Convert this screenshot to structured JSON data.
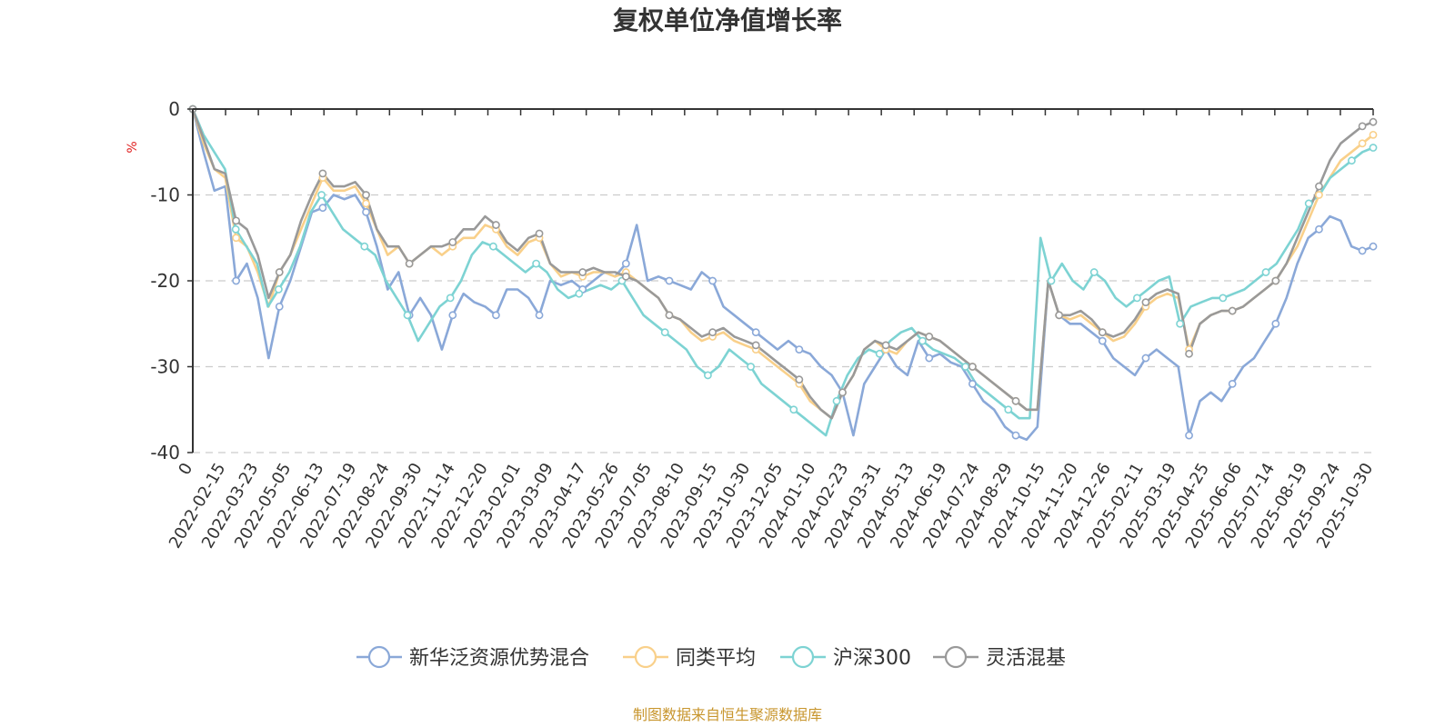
{
  "chart_data": {
    "type": "line",
    "title": "复权单位净值增长率",
    "ylabel": "%",
    "xlabel": "",
    "ylim": [
      -40,
      0
    ],
    "y_ticks": [
      0,
      -10,
      -20,
      -30,
      -40
    ],
    "grid": true,
    "legend_position": "bottom",
    "source": "制图数据来自恒生聚源数据库",
    "x_tick_labels": [
      "0",
      "2022-02-15",
      "2022-03-23",
      "2022-05-05",
      "2022-06-13",
      "2022-07-19",
      "2022-08-24",
      "2022-09-30",
      "2022-11-14",
      "2022-12-20",
      "2023-02-01",
      "2023-03-09",
      "2023-04-17",
      "2023-05-26",
      "2023-07-05",
      "2023-08-10",
      "2023-09-15",
      "2023-10-30",
      "2023-12-05",
      "2024-01-10",
      "2024-02-23",
      "2024-03-31",
      "2024-05-13",
      "2024-06-19",
      "2024-07-24",
      "2024-08-29",
      "2024-10-15",
      "2024-11-20",
      "2024-12-26",
      "2025-02-11",
      "2025-03-19",
      "2025-04-25",
      "2025-06-06",
      "2025-07-14",
      "2025-08-19",
      "2025-09-24",
      "2025-10-30"
    ],
    "series": [
      {
        "name": "新华泛资源优势混合",
        "color": "#8aa8d8",
        "values": [
          0,
          -5,
          -9.5,
          -9,
          -20,
          -18,
          -22,
          -29,
          -23,
          -20,
          -16,
          -12,
          -11.5,
          -10,
          -10.5,
          -10,
          -12,
          -16,
          -21,
          -19,
          -24,
          -22,
          -24,
          -28,
          -24,
          -21.5,
          -22.5,
          -23,
          -24,
          -21,
          -21,
          -22,
          -24,
          -20,
          -20.5,
          -20,
          -21,
          -20,
          -19,
          -19.5,
          -18,
          -13.5,
          -20,
          -19.5,
          -20,
          -20.5,
          -21,
          -19,
          -20,
          -23,
          -24,
          -25,
          -26,
          -27,
          -28,
          -27,
          -28,
          -28.5,
          -30,
          -31,
          -33,
          -38,
          -32,
          -30,
          -28,
          -30,
          -31,
          -27,
          -29,
          -28.5,
          -29.5,
          -30,
          -32,
          -34,
          -35,
          -37,
          -38,
          -38.5,
          -37,
          -20,
          -24,
          -25,
          -25,
          -26,
          -27,
          -29,
          -30,
          -31,
          -29,
          -28,
          -29,
          -30,
          -38,
          -34,
          -33,
          -34,
          -32,
          -30,
          -29,
          -27,
          -25,
          -22,
          -18,
          -15,
          -14,
          -12.5,
          -13,
          -16,
          -16.5,
          -16
        ]
      },
      {
        "name": "同类平均",
        "color": "#f9d08a",
        "values": [
          0,
          -4,
          -7,
          -8,
          -15,
          -16,
          -19,
          -23,
          -19,
          -17,
          -14,
          -11,
          -8,
          -9.5,
          -9.5,
          -9,
          -11,
          -14,
          -17,
          -16,
          -18,
          -17,
          -16,
          -17,
          -16,
          -15,
          -15,
          -13.5,
          -14,
          -16,
          -17,
          -15.5,
          -15,
          -18,
          -19.5,
          -19,
          -19.5,
          -19,
          -19,
          -19.5,
          -19,
          -20,
          -21,
          -22,
          -24,
          -24.5,
          -26,
          -27,
          -26.5,
          -26,
          -27,
          -27.5,
          -28,
          -29,
          -30,
          -31,
          -32,
          -34,
          -35,
          -36,
          -33,
          -31,
          -28,
          -27,
          -28,
          -28.5,
          -27,
          -26,
          -26.5,
          -27,
          -28,
          -29,
          -30,
          -31,
          -32,
          -33,
          -34,
          -35,
          -35,
          -20,
          -24,
          -24.5,
          -24,
          -25,
          -26,
          -27,
          -26.5,
          -25,
          -23,
          -22,
          -21.5,
          -22,
          -28,
          -25,
          -24,
          -23.5,
          -23.5,
          -23,
          -22,
          -21,
          -20,
          -18,
          -16,
          -13,
          -10,
          -8,
          -6,
          -5,
          -4,
          -3
        ]
      },
      {
        "name": "沪深300",
        "color": "#7dd3d3",
        "values": [
          0,
          -3,
          -5,
          -7,
          -14,
          -16,
          -18,
          -23,
          -21,
          -19,
          -16,
          -12,
          -10,
          -12,
          -14,
          -15,
          -16,
          -17,
          -20,
          -22,
          -24,
          -27,
          -25,
          -23,
          -22,
          -20,
          -17,
          -15.5,
          -16,
          -17,
          -18,
          -19,
          -18,
          -19,
          -21,
          -22,
          -21.5,
          -21,
          -20.5,
          -21,
          -20,
          -22,
          -24,
          -25,
          -26,
          -27,
          -28,
          -30,
          -31,
          -30,
          -28,
          -29,
          -30,
          -32,
          -33,
          -34,
          -35,
          -36,
          -37,
          -38,
          -34,
          -31,
          -29,
          -28,
          -28.5,
          -27,
          -26,
          -25.5,
          -27,
          -28,
          -28.5,
          -29,
          -30,
          -32,
          -33,
          -34,
          -35,
          -36,
          -36,
          -15,
          -20,
          -18,
          -20,
          -21,
          -19,
          -20,
          -22,
          -23,
          -22,
          -21,
          -20,
          -19.5,
          -25,
          -23,
          -22.5,
          -22,
          -22,
          -21.5,
          -21,
          -20,
          -19,
          -18,
          -16,
          -14,
          -11,
          -10,
          -8,
          -7,
          -6,
          -5,
          -4.5
        ]
      },
      {
        "name": "灵活混基",
        "color": "#999999",
        "values": [
          0,
          -3.5,
          -7,
          -7.5,
          -13,
          -14,
          -17,
          -22,
          -19,
          -17,
          -13,
          -10,
          -7.5,
          -9,
          -9,
          -8.5,
          -10,
          -14,
          -16,
          -16,
          -18,
          -17,
          -16,
          -16,
          -15.5,
          -14,
          -14,
          -12.5,
          -13.5,
          -15.5,
          -16.5,
          -15,
          -14.5,
          -18,
          -19,
          -19,
          -19,
          -18.5,
          -19,
          -19,
          -19.5,
          -20,
          -21,
          -22,
          -24,
          -24.5,
          -25.5,
          -26.5,
          -26,
          -25.5,
          -26.5,
          -27,
          -27.5,
          -28.5,
          -29.5,
          -30.5,
          -31.5,
          -33.5,
          -35,
          -36,
          -33,
          -31,
          -28,
          -27,
          -27.5,
          -28,
          -27,
          -26,
          -26.5,
          -27,
          -28,
          -29,
          -30,
          -31,
          -32,
          -33,
          -34,
          -35,
          -35,
          -20,
          -24,
          -24,
          -23.5,
          -24.5,
          -26,
          -26.5,
          -26,
          -24.5,
          -22.5,
          -21.5,
          -21,
          -21.5,
          -28.5,
          -25,
          -24,
          -23.5,
          -23.5,
          -23,
          -22,
          -21,
          -20,
          -18,
          -15,
          -12,
          -9,
          -6,
          -4,
          -3,
          -2,
          -1.5
        ]
      }
    ]
  }
}
